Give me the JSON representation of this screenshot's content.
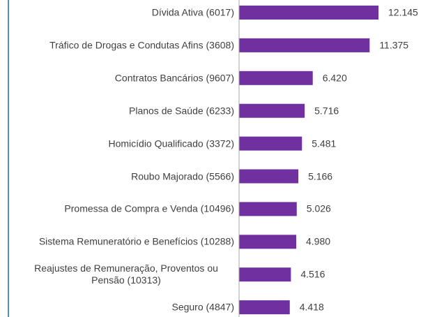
{
  "chart_data": {
    "type": "bar",
    "orientation": "horizontal",
    "categories": [
      "Dívida Ativa (6017)",
      "Tráfico de Drogas e Condutas Afins (3608)",
      "Contratos Bancários (9607)",
      "Planos de Saúde (6233)",
      "Homicídio Qualificado (3372)",
      "Roubo Majorado (5566)",
      "Promessa de Compra e Venda (10496)",
      "Sistema Remuneratório e Benefícios (10288)",
      "Reajustes de Remuneração, Proventos ou Pensão (10313)",
      "Seguro (4847)"
    ],
    "values": [
      12145,
      11375,
      6420,
      5716,
      5481,
      5166,
      5026,
      4980,
      4516,
      4418
    ],
    "value_labels": [
      "12.145",
      "11.375",
      "6.420",
      "5.716",
      "5.481",
      "5.166",
      "5.026",
      "4.980",
      "4.516",
      "4.418"
    ],
    "color": "#7030a0"
  }
}
